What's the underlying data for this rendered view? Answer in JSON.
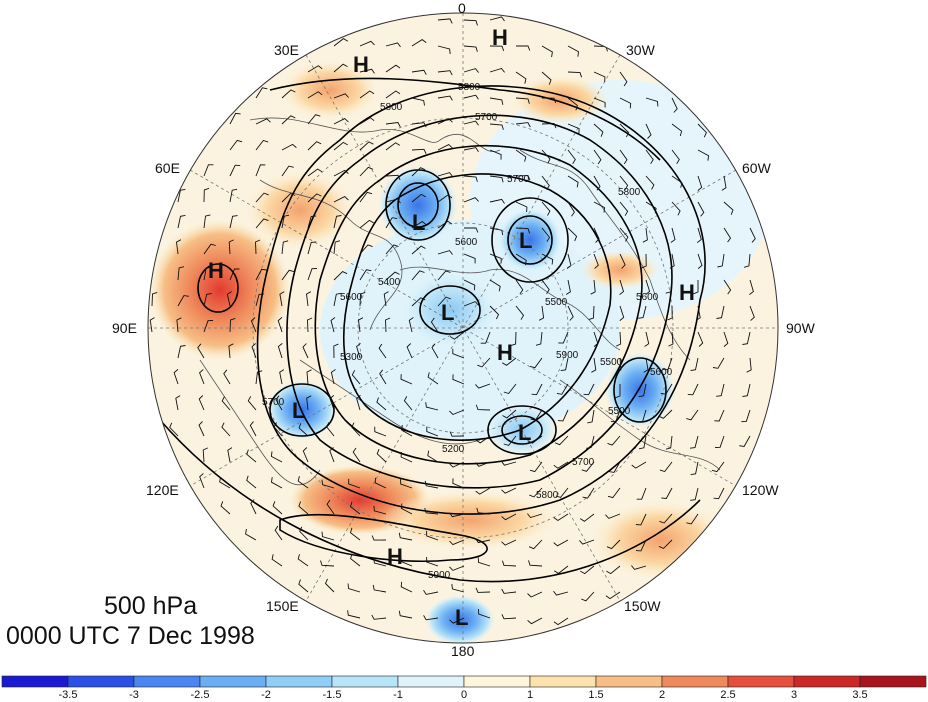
{
  "title": {
    "level": "500 hPa",
    "time": "0000 UTC 7 Dec 1998"
  },
  "longitude_labels": {
    "lon_0": "0",
    "lon_30e": "30E",
    "lon_30w": "30W",
    "lon_60e": "60E",
    "lon_60w": "60W",
    "lon_90e": "90E",
    "lon_90w": "90W",
    "lon_120e": "120E",
    "lon_120w": "120W",
    "lon_150e": "150E",
    "lon_150w": "150W",
    "lon_180": "180"
  },
  "pressure_systems": [
    {
      "type": "H",
      "label": "H"
    },
    {
      "type": "H",
      "label": "H"
    },
    {
      "type": "H",
      "label": "H"
    },
    {
      "type": "H",
      "label": "H"
    },
    {
      "type": "H",
      "label": "H"
    },
    {
      "type": "H",
      "label": "H"
    },
    {
      "type": "L",
      "label": "L"
    },
    {
      "type": "L",
      "label": "L"
    },
    {
      "type": "L",
      "label": "L"
    },
    {
      "type": "L",
      "label": "L"
    },
    {
      "type": "L",
      "label": "L"
    },
    {
      "type": "L",
      "label": "L"
    }
  ],
  "contour_labels": [
    "5800",
    "5700",
    "5800",
    "5700",
    "5800",
    "5600",
    "5400",
    "5500",
    "5300",
    "5200",
    "5700",
    "5800",
    "5900",
    "5600",
    "5500",
    "5600",
    "5700",
    "5900",
    "5600",
    "5500"
  ],
  "colorbar": {
    "ticks": [
      "-3.5",
      "-3",
      "-2.5",
      "-2",
      "-1.5",
      "-1",
      "0",
      "1",
      "1.5",
      "2",
      "2.5",
      "3",
      "3.5"
    ],
    "colors": [
      "#1a1ad2",
      "#2a50e8",
      "#4a86ef",
      "#6aaef3",
      "#8fcef6",
      "#b8e4f8",
      "#dff3fb",
      "#fdf6dc",
      "#fbe2ae",
      "#f7be86",
      "#ef8a5c",
      "#e4503c",
      "#cc2828",
      "#a8141c"
    ]
  }
}
